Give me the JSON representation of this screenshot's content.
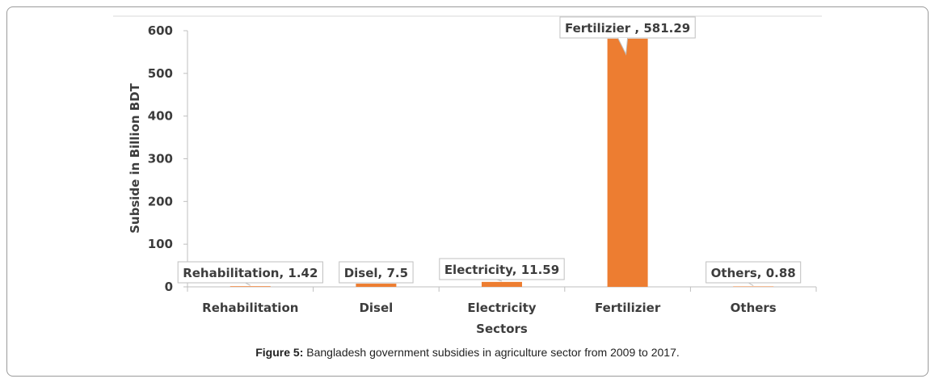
{
  "chart_data": {
    "type": "bar",
    "categories": [
      "Rehabilitation",
      "Disel",
      "Electricity",
      "Fertilizier",
      "Others"
    ],
    "values": [
      1.42,
      7.5,
      11.59,
      581.29,
      0.88
    ],
    "data_labels": [
      "Rehabilitation, 1.42",
      "Disel, 7.5",
      "Electricity, 11.59",
      "Fertilizier , 581.29",
      "Others, 0.88"
    ],
    "y_ticks": [
      "0",
      "100",
      "200",
      "300",
      "400",
      "500",
      "600"
    ],
    "xlabel": "Sectors",
    "ylabel": "Subside in Billion BDT",
    "ylim": [
      0,
      600
    ],
    "grid": false,
    "bar_color": "#ed7d31"
  },
  "caption": {
    "prefix": "Figure 5:",
    "text": " Bangladesh government subsidies in agriculture sector from 2009 to 2017."
  }
}
